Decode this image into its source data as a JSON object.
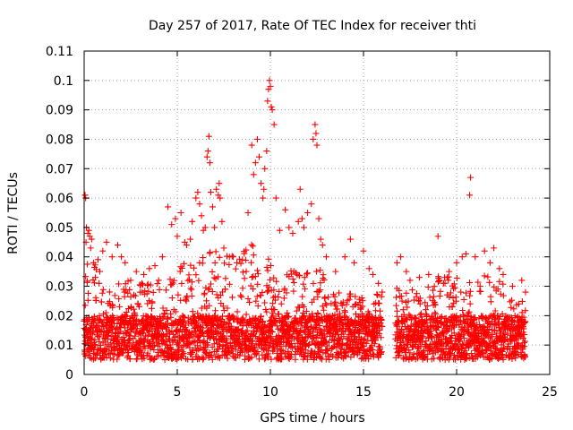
{
  "chart_data": {
    "type": "scatter",
    "title": "Day 257 of 2017, Rate Of TEC Index for receiver thti",
    "xlabel": "GPS time / hours",
    "ylabel": "ROTI / TECUs",
    "xlim": [
      0,
      25
    ],
    "ylim": [
      0,
      0.11
    ],
    "x_ticks": [
      0,
      5,
      10,
      15,
      20,
      25
    ],
    "x_tick_labels": [
      "0",
      "5",
      "10",
      "15",
      "20",
      "25"
    ],
    "y_ticks": [
      0,
      0.01,
      0.02,
      0.03,
      0.04,
      0.05,
      0.06,
      0.07,
      0.08,
      0.09,
      0.1,
      0.11
    ],
    "y_tick_labels": [
      "0",
      "0.01",
      "0.02",
      "0.03",
      "0.04",
      "0.05",
      "0.06",
      "0.07",
      "0.08",
      "0.09",
      "0.1",
      "0.11"
    ],
    "grid": true,
    "marker": "plus",
    "marker_color": "#ff0000",
    "data_gaps_hours": [
      [
        16.0,
        16.7
      ]
    ],
    "points": [
      [
        0.05,
        0.061
      ],
      [
        0.08,
        0.06
      ],
      [
        0.1,
        0.045
      ],
      [
        0.12,
        0.05
      ],
      [
        0.2,
        0.048
      ],
      [
        0.25,
        0.049
      ],
      [
        0.3,
        0.047
      ],
      [
        0.35,
        0.043
      ],
      [
        0.4,
        0.046
      ],
      [
        0.5,
        0.038
      ],
      [
        0.6,
        0.033
      ],
      [
        0.8,
        0.031
      ],
      [
        1.0,
        0.042
      ],
      [
        1.2,
        0.045
      ],
      [
        1.5,
        0.04
      ],
      [
        1.8,
        0.044
      ],
      [
        2.0,
        0.04
      ],
      [
        2.2,
        0.038
      ],
      [
        2.5,
        0.032
      ],
      [
        2.8,
        0.035
      ],
      [
        3.0,
        0.028
      ],
      [
        3.2,
        0.034
      ],
      [
        3.5,
        0.036
      ],
      [
        3.8,
        0.037
      ],
      [
        4.0,
        0.032
      ],
      [
        4.2,
        0.04
      ],
      [
        4.5,
        0.057
      ],
      [
        4.7,
        0.051
      ],
      [
        4.9,
        0.053
      ],
      [
        5.0,
        0.047
      ],
      [
        5.2,
        0.055
      ],
      [
        5.4,
        0.045
      ],
      [
        5.5,
        0.044
      ],
      [
        5.7,
        0.046
      ],
      [
        5.8,
        0.052
      ],
      [
        6.0,
        0.06
      ],
      [
        6.1,
        0.062
      ],
      [
        6.2,
        0.058
      ],
      [
        6.3,
        0.054
      ],
      [
        6.4,
        0.049
      ],
      [
        6.5,
        0.05
      ],
      [
        6.6,
        0.074
      ],
      [
        6.65,
        0.076
      ],
      [
        6.7,
        0.081
      ],
      [
        6.75,
        0.072
      ],
      [
        6.8,
        0.062
      ],
      [
        6.9,
        0.057
      ],
      [
        7.0,
        0.05
      ],
      [
        7.1,
        0.063
      ],
      [
        7.2,
        0.061
      ],
      [
        7.25,
        0.065
      ],
      [
        7.3,
        0.06
      ],
      [
        7.4,
        0.052
      ],
      [
        7.5,
        0.043
      ],
      [
        7.8,
        0.04
      ],
      [
        8.0,
        0.04
      ],
      [
        8.2,
        0.038
      ],
      [
        8.5,
        0.039
      ],
      [
        8.8,
        0.055
      ],
      [
        9.0,
        0.078
      ],
      [
        9.1,
        0.068
      ],
      [
        9.2,
        0.072
      ],
      [
        9.3,
        0.08
      ],
      [
        9.4,
        0.074
      ],
      [
        9.5,
        0.065
      ],
      [
        9.6,
        0.06
      ],
      [
        9.65,
        0.063
      ],
      [
        9.7,
        0.07
      ],
      [
        9.8,
        0.076
      ],
      [
        9.85,
        0.093
      ],
      [
        9.9,
        0.097
      ],
      [
        9.95,
        0.1
      ],
      [
        10.0,
        0.098
      ],
      [
        10.05,
        0.091
      ],
      [
        10.1,
        0.09
      ],
      [
        10.2,
        0.085
      ],
      [
        10.3,
        0.06
      ],
      [
        10.5,
        0.049
      ],
      [
        10.8,
        0.056
      ],
      [
        11.0,
        0.05
      ],
      [
        11.2,
        0.048
      ],
      [
        11.5,
        0.052
      ],
      [
        11.6,
        0.063
      ],
      [
        11.7,
        0.053
      ],
      [
        11.8,
        0.05
      ],
      [
        12.0,
        0.055
      ],
      [
        12.2,
        0.058
      ],
      [
        12.3,
        0.08
      ],
      [
        12.4,
        0.085
      ],
      [
        12.45,
        0.082
      ],
      [
        12.5,
        0.078
      ],
      [
        12.6,
        0.053
      ],
      [
        12.7,
        0.046
      ],
      [
        12.8,
        0.044
      ],
      [
        13.0,
        0.04
      ],
      [
        13.5,
        0.035
      ],
      [
        14.0,
        0.04
      ],
      [
        14.3,
        0.046
      ],
      [
        14.5,
        0.038
      ],
      [
        15.0,
        0.042
      ],
      [
        15.3,
        0.036
      ],
      [
        15.5,
        0.034
      ],
      [
        15.8,
        0.031
      ],
      [
        16.0,
        0.028
      ],
      [
        16.8,
        0.038
      ],
      [
        17.0,
        0.04
      ],
      [
        17.3,
        0.035
      ],
      [
        17.5,
        0.032
      ],
      [
        18.0,
        0.033
      ],
      [
        18.5,
        0.034
      ],
      [
        19.0,
        0.047
      ],
      [
        19.3,
        0.031
      ],
      [
        19.6,
        0.035
      ],
      [
        20.0,
        0.038
      ],
      [
        20.3,
        0.04
      ],
      [
        20.5,
        0.041
      ],
      [
        20.7,
        0.061
      ],
      [
        20.75,
        0.067
      ],
      [
        21.0,
        0.04
      ],
      [
        21.5,
        0.042
      ],
      [
        21.8,
        0.038
      ],
      [
        22.0,
        0.043
      ],
      [
        22.3,
        0.036
      ],
      [
        22.5,
        0.034
      ],
      [
        23.0,
        0.03
      ],
      [
        23.5,
        0.032
      ],
      [
        23.7,
        0.028
      ]
    ]
  }
}
